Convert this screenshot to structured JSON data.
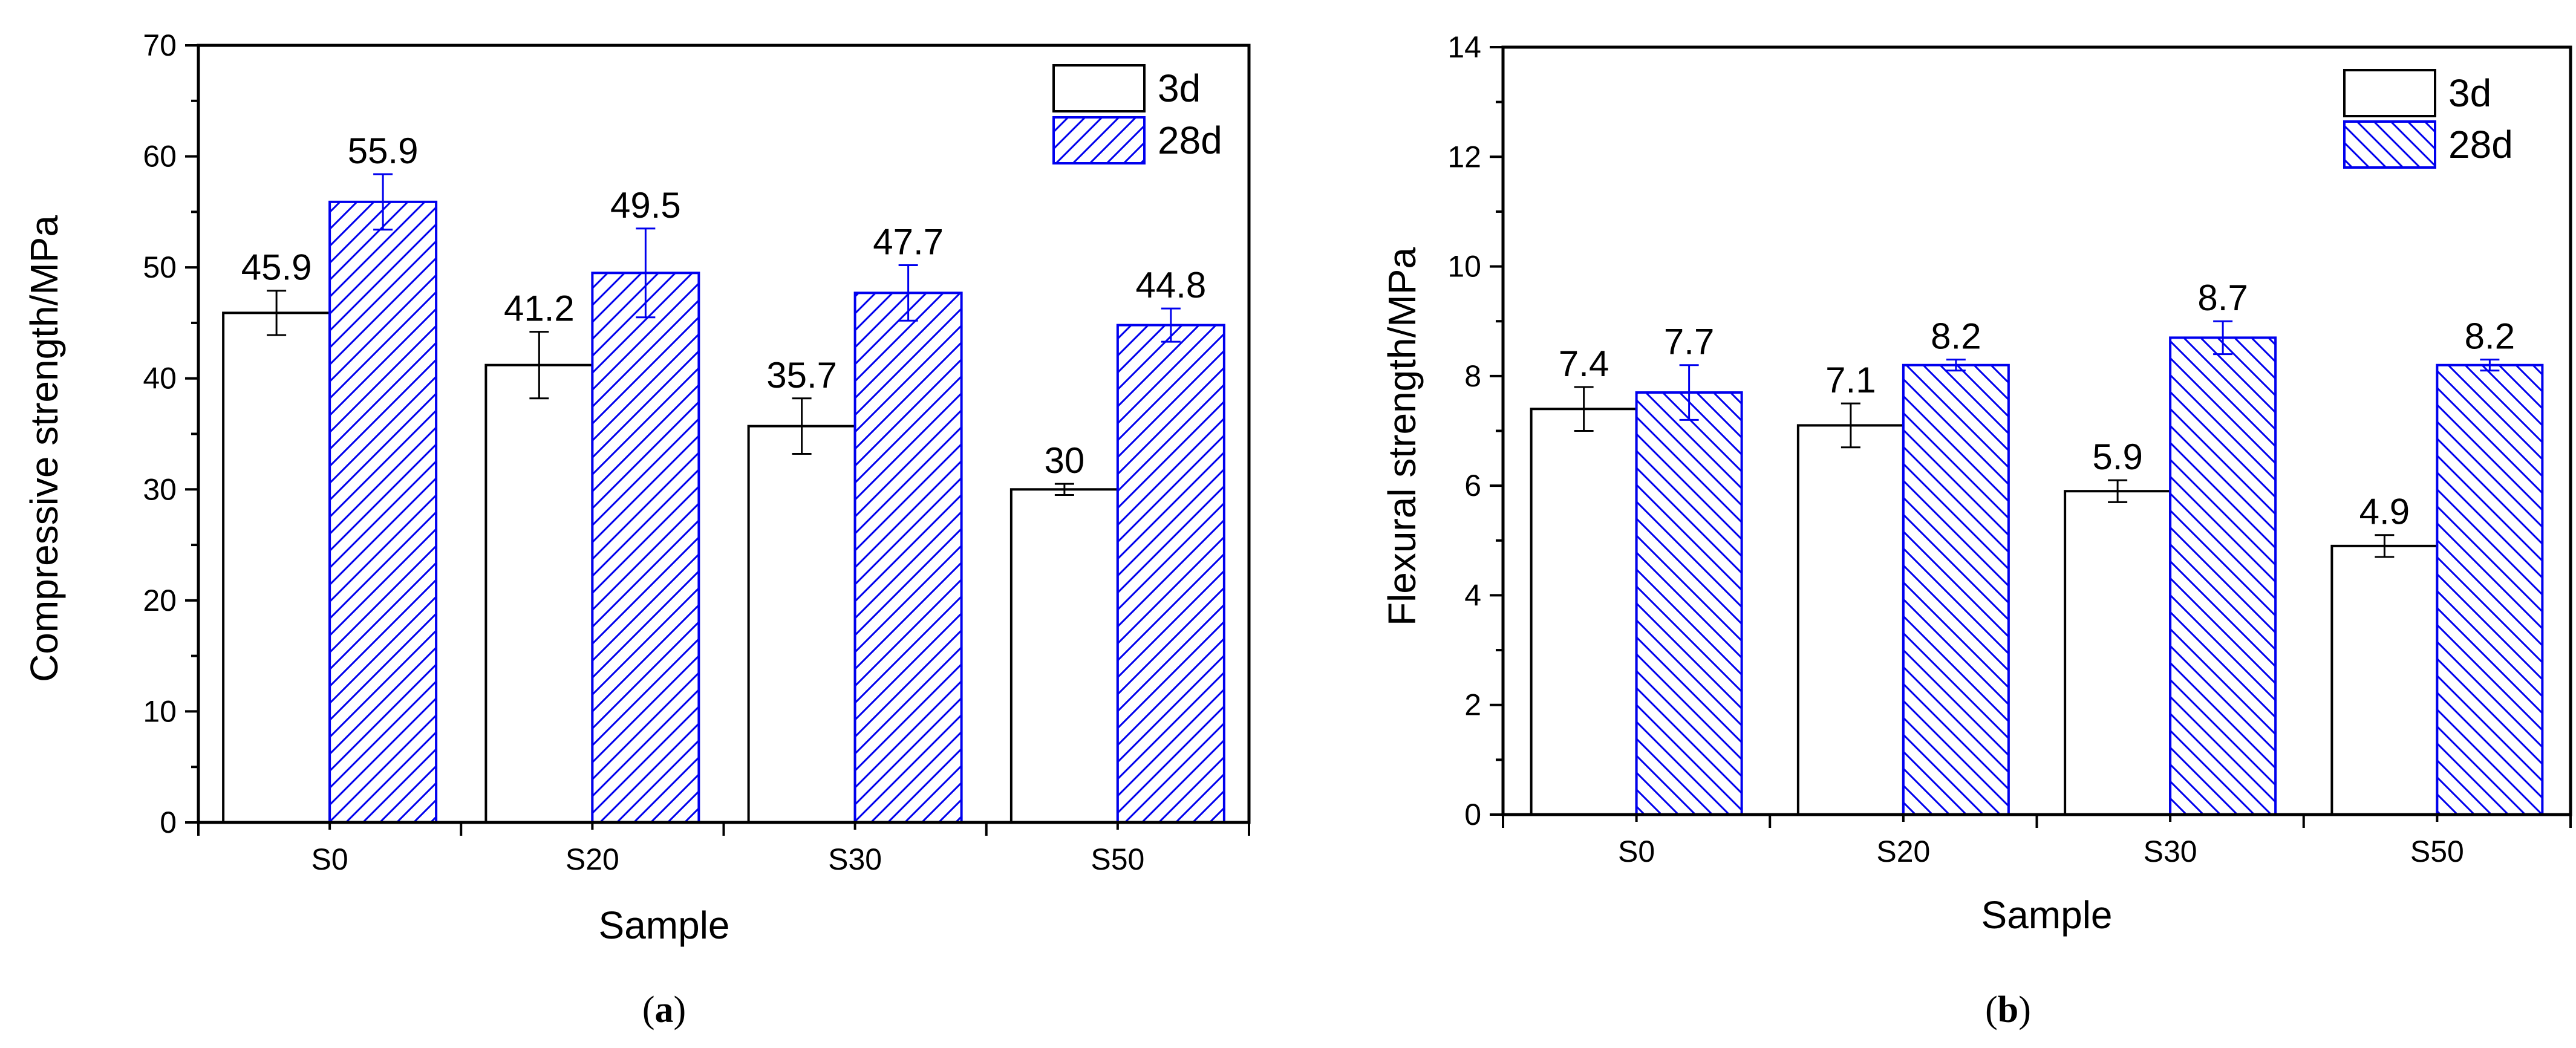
{
  "chart_data": [
    {
      "type": "bar",
      "panel_label_prefix": "(",
      "panel_label_letter": "a",
      "panel_label_suffix": ")",
      "xlabel": "Sample",
      "ylabel": "Compressive strength/MPa",
      "ylim": [
        0,
        70
      ],
      "yticks": [
        0,
        10,
        20,
        30,
        40,
        50,
        60,
        70
      ],
      "categories": [
        "S0",
        "S20",
        "S30",
        "S50"
      ],
      "legend_position": "top-right",
      "series": [
        {
          "name": "3d",
          "values": [
            45.9,
            41.2,
            35.7,
            30
          ],
          "labels": [
            "45.9",
            "41.2",
            "35.7",
            "30"
          ],
          "errors": [
            2.0,
            3.0,
            2.5,
            0.5
          ],
          "fill": "#ffffff",
          "stroke": "#000000"
        },
        {
          "name": "28d",
          "values": [
            55.9,
            49.5,
            47.7,
            44.8
          ],
          "labels": [
            "55.9",
            "49.5",
            "47.7",
            "44.8"
          ],
          "errors": [
            2.5,
            4.0,
            2.5,
            1.5
          ],
          "fill": "hatch-right",
          "stroke": "#0000ee"
        }
      ]
    },
    {
      "type": "bar",
      "panel_label_prefix": "(",
      "panel_label_letter": "b",
      "panel_label_suffix": ")",
      "xlabel": "Sample",
      "ylabel": "Flexural strength/MPa",
      "ylim": [
        0,
        14
      ],
      "yticks": [
        0,
        2,
        4,
        6,
        8,
        10,
        12,
        14
      ],
      "categories": [
        "S0",
        "S20",
        "S30",
        "S50"
      ],
      "legend_position": "top-right",
      "series": [
        {
          "name": "3d",
          "values": [
            7.4,
            7.1,
            5.9,
            4.9
          ],
          "labels": [
            "7.4",
            "7.1",
            "5.9",
            "4.9"
          ],
          "errors": [
            0.4,
            0.4,
            0.2,
            0.2
          ],
          "fill": "#ffffff",
          "stroke": "#000000"
        },
        {
          "name": "28d",
          "values": [
            7.7,
            8.2,
            8.7,
            8.2
          ],
          "labels": [
            "7.7",
            "8.2",
            "8.7",
            "8.2"
          ],
          "errors": [
            0.5,
            0.1,
            0.3,
            0.1
          ],
          "fill": "hatch-left",
          "stroke": "#0000ee"
        }
      ]
    }
  ]
}
